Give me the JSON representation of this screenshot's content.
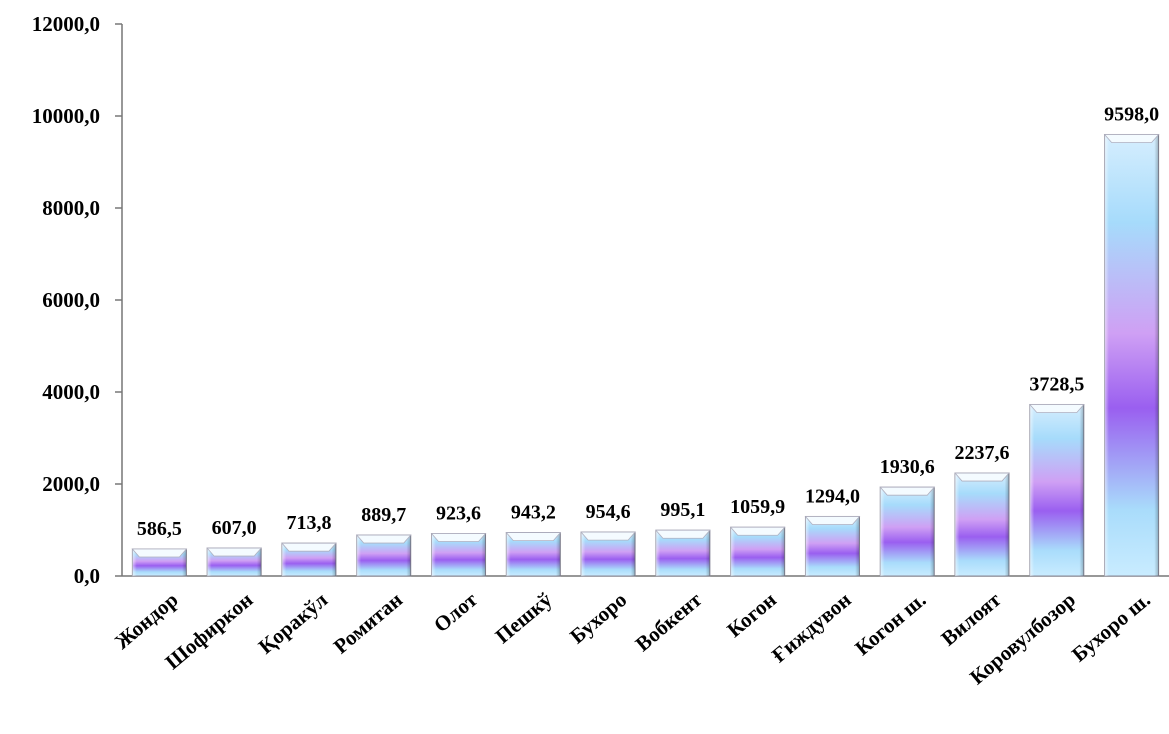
{
  "chart_data": {
    "type": "bar",
    "title": "",
    "xlabel": "",
    "ylabel": "",
    "ylim": [
      0,
      12000
    ],
    "yticks": [
      "0,0",
      "2000,0",
      "4000,0",
      "6000,0",
      "8000,0",
      "10000,0",
      "12000,0"
    ],
    "ytick_values": [
      0,
      2000,
      4000,
      6000,
      8000,
      10000,
      12000
    ],
    "grid": false,
    "categories": [
      "Жондор",
      "Шофиркон",
      "Қоракўл",
      "Ромитан",
      "Олот",
      "Пешкў",
      "Бухоро",
      "Вобкент",
      "Когон",
      "Ғиждувон",
      "Когон ш.",
      "Вилоят",
      "Коровулбозор",
      "Бухоро ш."
    ],
    "values": [
      586.5,
      607.0,
      713.8,
      889.7,
      923.6,
      943.2,
      954.6,
      995.1,
      1059.9,
      1294.0,
      1930.6,
      2237.6,
      3728.5,
      9598.0
    ],
    "data_labels": [
      "586,5",
      "607,0",
      "713,8",
      "889,7",
      "923,6",
      "943,2",
      "954,6",
      "995,1",
      "1059,9",
      "1294,0",
      "1930,6",
      "2237,6",
      "3728,5",
      "9598,0"
    ],
    "colors": {
      "light": "#b9e6ff",
      "mid": "#d7a8f5",
      "dark": "#9b63f0",
      "edge": "#8a8a9a"
    }
  }
}
